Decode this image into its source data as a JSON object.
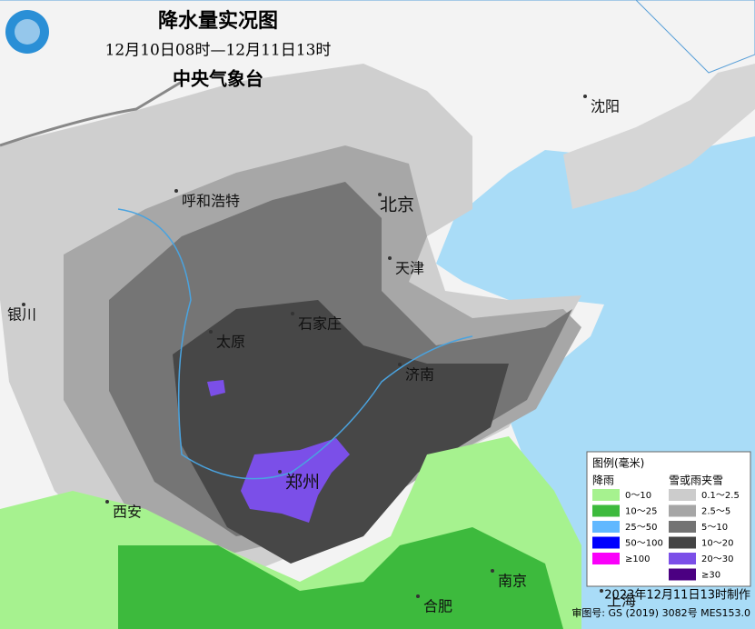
{
  "header": {
    "title": "降水量实况图",
    "period": "12月10日08时—12月11日13时",
    "agency": "中央气象台"
  },
  "cities": [
    "沈阳",
    "北京",
    "天津",
    "呼和浩特",
    "石家庄",
    "太原",
    "济南",
    "银川",
    "郑州",
    "西安",
    "南京",
    "合肥",
    "上海"
  ],
  "legend": {
    "title": "图例(毫米)",
    "rain_heading": "降雨",
    "snow_heading": "雪或雨夹雪",
    "rain": [
      {
        "label": "0～10",
        "color": "#a6f28f"
      },
      {
        "label": "10～25",
        "color": "#3dba3d"
      },
      {
        "label": "25～50",
        "color": "#61b8ff"
      },
      {
        "label": "50～100",
        "color": "#0000fe"
      },
      {
        "label": "≥100",
        "color": "#fa00fa"
      }
    ],
    "snow": [
      {
        "label": "0.1～2.5",
        "color": "#cccccc"
      },
      {
        "label": "2.5～5",
        "color": "#a6a6a6"
      },
      {
        "label": "5～10",
        "color": "#737373"
      },
      {
        "label": "10～20",
        "color": "#444444"
      },
      {
        "label": "20～30",
        "color": "#7b4fe8"
      },
      {
        "label": "≥30",
        "color": "#4b0082"
      }
    ]
  },
  "footer": {
    "made": "2023年12月11日13时制作",
    "approval": "审图号: GS (2019) 3082号 MES153.0"
  }
}
